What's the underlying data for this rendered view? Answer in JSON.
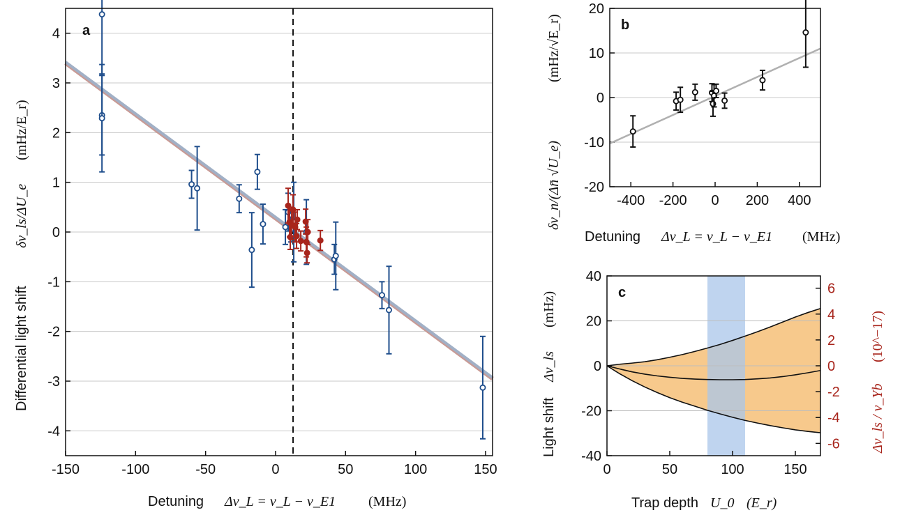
{
  "chart_data": [
    {
      "panel": "a",
      "type": "scatter",
      "panel_label": "a",
      "xlabel_text": "Detuning",
      "xlabel_math": "Δν_L = ν_L − ν_E1",
      "xlabel_unit": "(MHz)",
      "ylabel_text": "Differential light shift",
      "ylabel_math": "δν_ls/ΔU_e",
      "ylabel_unit": "(mHz/E_r)",
      "xlim": [
        -150,
        155
      ],
      "ylim": [
        -4.5,
        4.5
      ],
      "xticks": [
        -150,
        -100,
        -50,
        0,
        50,
        100,
        150
      ],
      "yticks": [
        -4,
        -3,
        -2,
        -1,
        0,
        1,
        2,
        3,
        4
      ],
      "grid": "horizontal",
      "vline_x": 12.5,
      "fit_line": {
        "x": [
          -150,
          155
        ],
        "y": [
          3.4,
          -2.95
        ]
      },
      "series": [
        {
          "color": "#1f4e8c",
          "marker": "open-circle",
          "points": [
            {
              "x": -124,
              "y": 4.38,
              "err": 1.2
            },
            {
              "x": -124,
              "y": 2.35,
              "err": 0.8
            },
            {
              "x": -124,
              "y": 2.29,
              "err": 1.08
            },
            {
              "x": -60,
              "y": 0.96,
              "err": 0.28
            },
            {
              "x": -56,
              "y": 0.88,
              "err": 0.84
            },
            {
              "x": -26,
              "y": 0.67,
              "err": 0.28
            },
            {
              "x": -17,
              "y": -0.36,
              "err": 0.75
            },
            {
              "x": -13,
              "y": 1.21,
              "err": 0.35
            },
            {
              "x": -9,
              "y": 0.16,
              "err": 0.4
            },
            {
              "x": 7,
              "y": 0.1,
              "err": 0.35
            },
            {
              "x": 9,
              "y": 0.4,
              "err": 0.38
            },
            {
              "x": 11,
              "y": 0.05,
              "err": 0.25
            },
            {
              "x": 13,
              "y": 0.2,
              "err": 0.8
            },
            {
              "x": 22,
              "y": 0.0,
              "err": 0.65
            },
            {
              "x": 42,
              "y": -0.55,
              "err": 0.3
            },
            {
              "x": 43,
              "y": -0.48,
              "err": 0.68
            },
            {
              "x": 76,
              "y": -1.27,
              "err": 0.27
            },
            {
              "x": 81,
              "y": -1.57,
              "err": 0.88
            },
            {
              "x": 148,
              "y": -3.13,
              "err": 1.03
            }
          ]
        },
        {
          "color": "#a8251c",
          "marker": "filled-circle",
          "points": [
            {
              "x": 9,
              "y": 0.53,
              "err": 0.35
            },
            {
              "x": 10,
              "y": 0.2,
              "err": 0.3
            },
            {
              "x": 10.5,
              "y": -0.1,
              "err": 0.25
            },
            {
              "x": 11.5,
              "y": 0.15,
              "err": 0.3
            },
            {
              "x": 12.5,
              "y": 0.45,
              "err": 0.3
            },
            {
              "x": 14,
              "y": 0.1,
              "err": 0.3
            },
            {
              "x": 15,
              "y": -0.08,
              "err": 0.25
            },
            {
              "x": 15.5,
              "y": 0.25,
              "err": 0.2
            },
            {
              "x": 18,
              "y": -0.18,
              "err": 0.2
            },
            {
              "x": 21.5,
              "y": 0.21,
              "err": 0.25
            },
            {
              "x": 22,
              "y": -0.2,
              "err": 0.3
            },
            {
              "x": 22.5,
              "y": -0.42,
              "err": 0.2
            },
            {
              "x": 23,
              "y": 0.0,
              "err": 0.25
            },
            {
              "x": 32,
              "y": -0.17,
              "err": 0.2
            }
          ]
        }
      ]
    },
    {
      "panel": "b",
      "type": "scatter",
      "panel_label": "b",
      "xlabel_text": "Detuning",
      "xlabel_math": "Δν_L = ν_L − ν_E1",
      "xlabel_unit": "(MHz)",
      "ylabel_math": "δν_n/(Δn̄ √U_e)",
      "ylabel_unit": "(mHz/√E_r)",
      "xlim": [
        -500,
        500
      ],
      "ylim": [
        -20,
        20
      ],
      "xticks": [
        -400,
        -200,
        0,
        200,
        400
      ],
      "yticks": [
        -20,
        -10,
        0,
        10,
        20
      ],
      "grid": "horizontal",
      "fit_line": {
        "x": [
          -500,
          500
        ],
        "y": [
          -10.3,
          11.0
        ]
      },
      "series": [
        {
          "color": "#111111",
          "marker": "open-circle",
          "points": [
            {
              "x": -390,
              "y": -7.6,
              "err": 3.5
            },
            {
              "x": -185,
              "y": -0.8,
              "err": 2.0
            },
            {
              "x": -165,
              "y": -0.5,
              "err": 2.8
            },
            {
              "x": -95,
              "y": 1.2,
              "err": 1.8
            },
            {
              "x": -15,
              "y": 1.1,
              "err": 2.0
            },
            {
              "x": -10,
              "y": -1.4,
              "err": 2.8
            },
            {
              "x": -5,
              "y": 0.4,
              "err": 2.5
            },
            {
              "x": 5,
              "y": 1.5,
              "err": 1.5
            },
            {
              "x": 45,
              "y": -0.7,
              "err": 1.7
            },
            {
              "x": 225,
              "y": 3.9,
              "err": 2.2
            },
            {
              "x": 430,
              "y": 14.6,
              "err": 7.8
            }
          ]
        }
      ]
    },
    {
      "panel": "c",
      "type": "area",
      "panel_label": "c",
      "xlabel_text": "Trap depth",
      "xlabel_math": "U_0",
      "xlabel_unit": "(E_r)",
      "ylabel_text": "Light shift",
      "ylabel_math": "Δν_ls",
      "ylabel_unit": "(mHz)",
      "y2label_math": "Δν_ls / ν_Yb",
      "y2label_unit": "(10^−17)",
      "xlim": [
        0,
        170
      ],
      "ylim": [
        -40,
        40
      ],
      "y2lim": [
        -6.95,
        6.95
      ],
      "xticks": [
        0,
        50,
        100,
        150
      ],
      "yticks": [
        -40,
        -20,
        0,
        20,
        40
      ],
      "y2ticks": [
        -6,
        -4,
        -2,
        0,
        2,
        4,
        6
      ],
      "grid": "horizontal",
      "highlight_x": [
        80,
        110
      ],
      "highlight_color": "#aac6ea",
      "fill_color": "#f7c98c",
      "x": [
        0,
        10,
        20,
        30,
        40,
        50,
        60,
        70,
        80,
        90,
        100,
        110,
        120,
        130,
        140,
        150,
        160,
        170
      ],
      "series": [
        {
          "values": [
            0,
            0.7,
            1.2,
            1.8,
            2.7,
            3.8,
            5.0,
            6.4,
            7.9,
            9.5,
            11.3,
            13.2,
            15.2,
            17.3,
            19.5,
            21.7,
            23.7,
            25.5
          ]
        },
        {
          "values": [
            0,
            -3.5,
            -6.6,
            -9.4,
            -11.9,
            -14.2,
            -16.2,
            -18.0,
            -19.8,
            -21.4,
            -22.9,
            -24.3,
            -25.5,
            -26.6,
            -27.6,
            -28.5,
            -29.2,
            -29.8
          ]
        },
        {
          "values": [
            0,
            -1.4,
            -2.7,
            -3.7,
            -4.5,
            -5.1,
            -5.6,
            -5.9,
            -6.1,
            -6.2,
            -6.2,
            -6.1,
            -5.8,
            -5.4,
            -4.8,
            -4.0,
            -3.1,
            -2.1
          ]
        }
      ]
    }
  ],
  "colors": {
    "blue": "#1f4e8c",
    "red": "#a8251c",
    "fit_blue": "#9db3cc",
    "fit_red": "#c89a95",
    "gray_fit": "#b0b0b0",
    "orange_fill": "#f7c98c",
    "highlight": "#aac6ea",
    "axis_red": "#a8251c"
  }
}
